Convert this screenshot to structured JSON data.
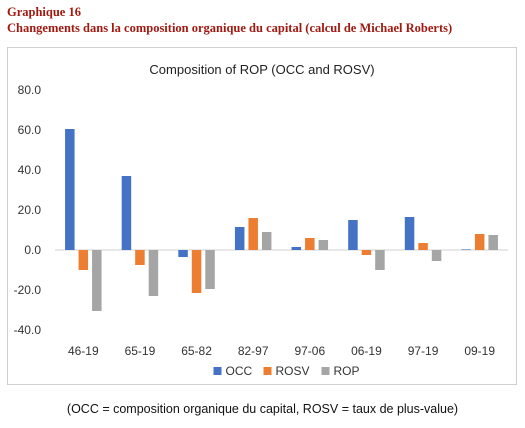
{
  "header": {
    "graph_label": "Graphique 16",
    "subtitle": "Changements dans la composition organique du capital (calcul de Michael Roberts)"
  },
  "caption": "(OCC = composition organique du capital, ROSV = taux de plus-value)",
  "chart_data": {
    "type": "bar",
    "title": "Composition of ROP (OCC and ROSV)",
    "categories": [
      "46-19",
      "65-19",
      "65-82",
      "82-97",
      "97-06",
      "06-19",
      "97-19",
      "09-19"
    ],
    "series": [
      {
        "name": "OCC",
        "color": "#4472c4",
        "values": [
          60.5,
          37.0,
          -3.5,
          11.5,
          1.5,
          15.0,
          16.5,
          0.3
        ]
      },
      {
        "name": "ROSV",
        "color": "#ed7d31",
        "values": [
          -10.0,
          -7.5,
          -21.5,
          16.0,
          6.0,
          -2.5,
          3.5,
          8.0
        ]
      },
      {
        "name": "ROP",
        "color": "#a5a5a5",
        "values": [
          -30.5,
          -23.0,
          -19.5,
          9.0,
          5.0,
          -10.0,
          -5.5,
          7.5
        ]
      }
    ],
    "ylim": [
      -40,
      80
    ],
    "yticks": [
      -40,
      -20,
      0,
      20,
      40,
      60,
      80
    ],
    "ytick_labels": [
      "-40.0",
      "-20.0",
      "0.0",
      "20.0",
      "40.0",
      "60.0",
      "80.0"
    ],
    "legend_position": "bottom",
    "grid": false
  }
}
